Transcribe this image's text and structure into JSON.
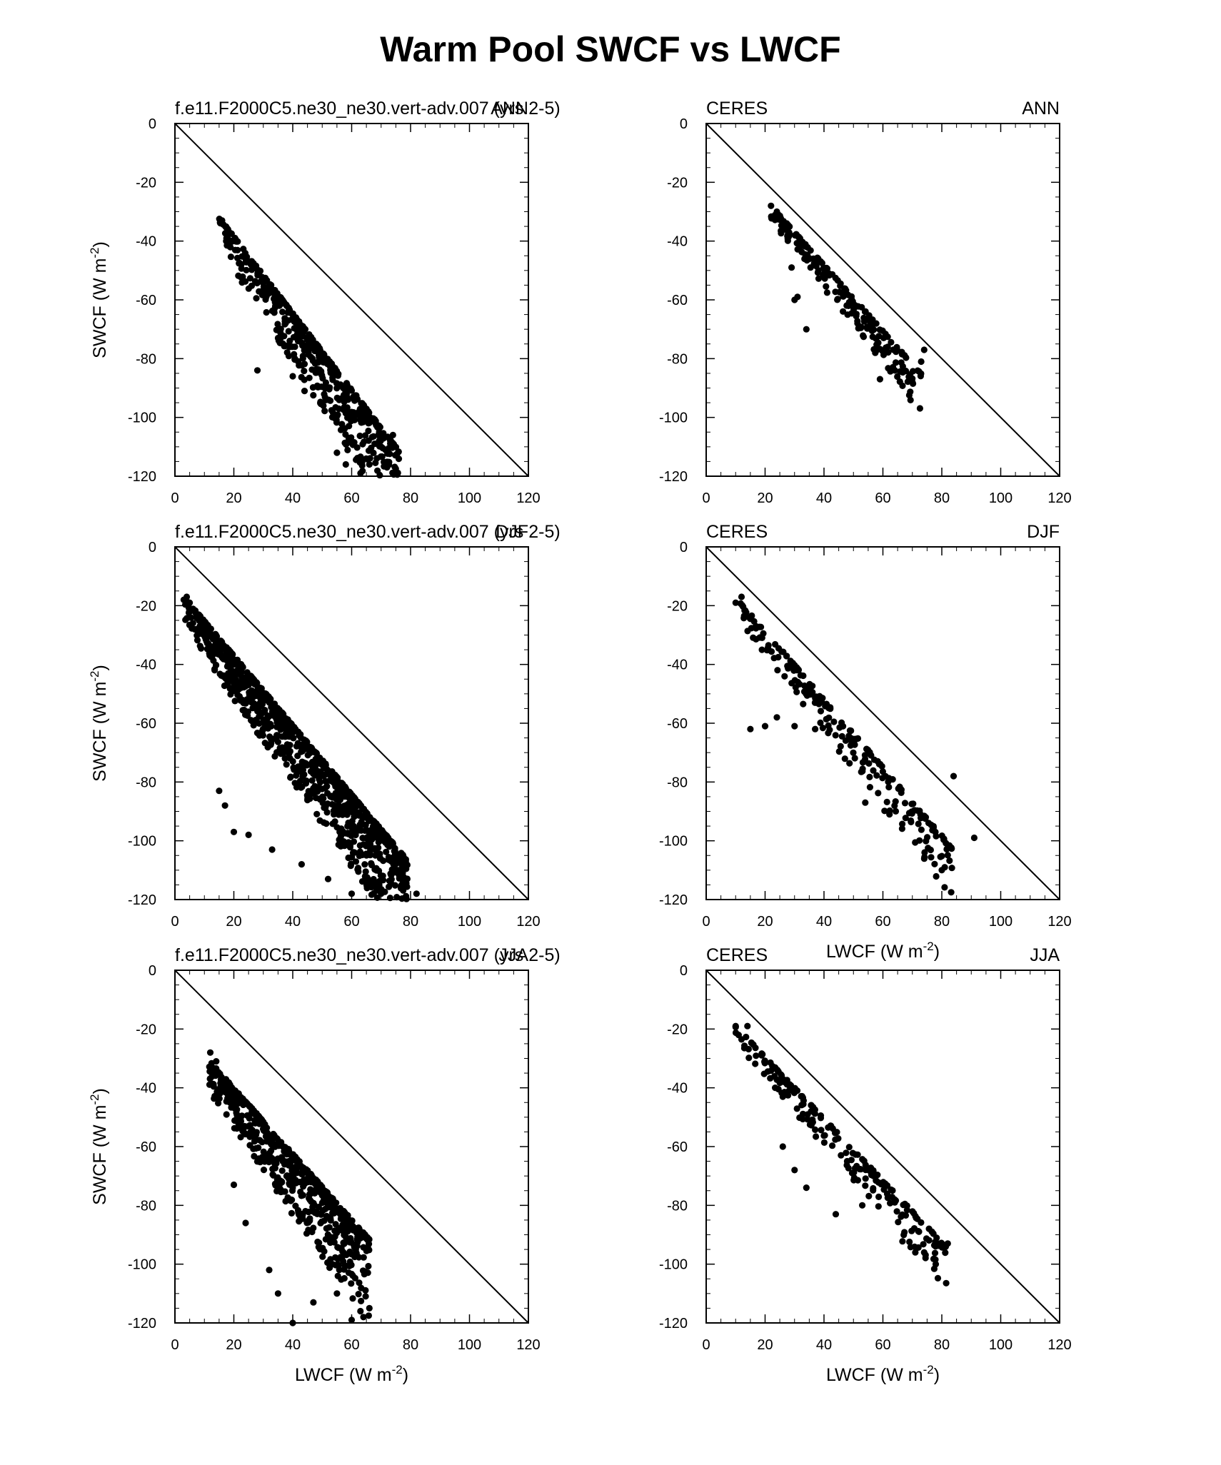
{
  "figure": {
    "title": "Warm Pool SWCF vs LWCF"
  },
  "chart_data": [
    {
      "type": "scatter",
      "left_title": "f.e11.F2000C5.ne30_ne30.vert-adv.007 (yrs 2-5)",
      "right_title": "ANN",
      "xlabel": "",
      "ylabel": "SWCF (W m-2)",
      "ylabel_main": "SWCF (W m",
      "ylabel_sup": "-2",
      "ylabel_end": ")",
      "xlim": [
        0,
        120
      ],
      "ylim": [
        -120,
        0
      ],
      "x_ticks": [
        "0",
        "20",
        "40",
        "60",
        "80",
        "100",
        "120"
      ],
      "y_ticks": [
        "0",
        "-20",
        "-40",
        "-60",
        "-80",
        "-100",
        "-120"
      ],
      "reference_line": "1:1 (SWCF = -LWCF)",
      "scatter_params": {
        "n": 520,
        "x0": 15,
        "x1": 76,
        "y0": -32,
        "slope": -1.3,
        "spread": 28,
        "seed": 11
      },
      "points": [
        [
          16,
          -33
        ],
        [
          18,
          -36
        ],
        [
          20,
          -40
        ],
        [
          28,
          -84
        ],
        [
          35,
          -73
        ],
        [
          40,
          -86
        ],
        [
          44,
          -91
        ],
        [
          55,
          -112
        ],
        [
          58,
          -116
        ],
        [
          63,
          -119
        ],
        [
          66,
          -116
        ],
        [
          70,
          -110
        ],
        [
          72,
          -117
        ],
        [
          74,
          -106
        ]
      ]
    },
    {
      "type": "scatter",
      "left_title": "CERES",
      "right_title": "ANN",
      "xlabel": "",
      "ylabel": "",
      "xlim": [
        0,
        120
      ],
      "ylim": [
        -120,
        0
      ],
      "x_ticks": [
        "0",
        "20",
        "40",
        "60",
        "80",
        "100",
        "120"
      ],
      "y_ticks": [
        "0",
        "-20",
        "-40",
        "-60",
        "-80",
        "-100",
        "-120"
      ],
      "reference_line": "1:1 (SWCF = -LWCF)",
      "scatter_params": {
        "n": 200,
        "x0": 22,
        "x1": 73,
        "y0": -28,
        "slope": -1.12,
        "spread": 14,
        "seed": 23
      },
      "points": [
        [
          22,
          -28
        ],
        [
          24,
          -30
        ],
        [
          30,
          -60
        ],
        [
          31,
          -59
        ],
        [
          29,
          -49
        ],
        [
          34,
          -70
        ],
        [
          59,
          -87
        ],
        [
          70,
          -88
        ],
        [
          74,
          -77
        ],
        [
          73,
          -81
        ]
      ]
    },
    {
      "type": "scatter",
      "left_title": "f.e11.F2000C5.ne30_ne30.vert-adv.007 (yrs 2-5)",
      "right_title": "DJF",
      "xlabel": "",
      "ylabel": "SWCF (W m-2)",
      "ylabel_main": "SWCF (W m",
      "ylabel_sup": "-2",
      "ylabel_end": ")",
      "xlim": [
        0,
        120
      ],
      "ylim": [
        -120,
        0
      ],
      "x_ticks": [
        "0",
        "20",
        "40",
        "60",
        "80",
        "100",
        "120"
      ],
      "y_ticks": [
        "0",
        "-20",
        "-40",
        "-60",
        "-80",
        "-100",
        "-120"
      ],
      "reference_line": "1:1 (SWCF = -LWCF)",
      "scatter_params": {
        "n": 950,
        "x0": 3,
        "x1": 79,
        "y0": -17,
        "slope": -1.18,
        "spread": 30,
        "seed": 37
      },
      "points": [
        [
          3,
          -18
        ],
        [
          4,
          -17
        ],
        [
          5,
          -19
        ],
        [
          15,
          -83
        ],
        [
          17,
          -88
        ],
        [
          20,
          -97
        ],
        [
          25,
          -98
        ],
        [
          33,
          -103
        ],
        [
          43,
          -108
        ],
        [
          52,
          -113
        ],
        [
          60,
          -118
        ],
        [
          70,
          -118
        ],
        [
          77,
          -115
        ],
        [
          82,
          -118
        ]
      ]
    },
    {
      "type": "scatter",
      "left_title": "CERES",
      "right_title": "DJF",
      "xlabel": "LWCF (W m-2)",
      "xlabel_main": "LWCF (W m",
      "xlabel_sup": "-2",
      "xlabel_end": ")",
      "ylabel": "",
      "xlim": [
        0,
        120
      ],
      "ylim": [
        -120,
        0
      ],
      "x_ticks": [
        "0",
        "20",
        "40",
        "60",
        "80",
        "100",
        "120"
      ],
      "y_ticks": [
        "0",
        "-20",
        "-40",
        "-60",
        "-80",
        "-100",
        "-120"
      ],
      "reference_line": "1:1 (SWCF = -LWCF)",
      "scatter_params": {
        "n": 220,
        "x0": 10,
        "x1": 84,
        "y0": -17,
        "slope": -1.16,
        "spread": 18,
        "seed": 41
      },
      "points": [
        [
          10,
          -19
        ],
        [
          12,
          -17
        ],
        [
          15,
          -62
        ],
        [
          20,
          -61
        ],
        [
          24,
          -58
        ],
        [
          30,
          -61
        ],
        [
          37,
          -62
        ],
        [
          54,
          -87
        ],
        [
          80,
          -110
        ],
        [
          81,
          -109
        ],
        [
          84,
          -78
        ],
        [
          91,
          -99
        ]
      ]
    },
    {
      "type": "scatter",
      "left_title": "f.e11.F2000C5.ne30_ne30.vert-adv.007 (yrs 2-5)",
      "right_title": "JJA",
      "xlabel": "LWCF (W m-2)",
      "xlabel_main": "LWCF (W m",
      "xlabel_sup": "-2",
      "xlabel_end": ")",
      "ylabel": "SWCF (W m-2)",
      "ylabel_main": "SWCF (W m",
      "ylabel_sup": "-2",
      "ylabel_end": ")",
      "xlim": [
        0,
        120
      ],
      "ylim": [
        -120,
        0
      ],
      "x_ticks": [
        "0",
        "20",
        "40",
        "60",
        "80",
        "100",
        "120"
      ],
      "y_ticks": [
        "0",
        "-20",
        "-40",
        "-60",
        "-80",
        "-100",
        "-120"
      ],
      "reference_line": "1:1 (SWCF = -LWCF)",
      "scatter_params": {
        "n": 620,
        "x0": 11,
        "x1": 66,
        "y0": -30,
        "slope": -1.12,
        "spread": 30,
        "seed": 53
      },
      "points": [
        [
          12,
          -28
        ],
        [
          12,
          -33
        ],
        [
          14,
          -31
        ],
        [
          20,
          -73
        ],
        [
          24,
          -86
        ],
        [
          32,
          -102
        ],
        [
          35,
          -110
        ],
        [
          40,
          -120
        ],
        [
          47,
          -113
        ],
        [
          55,
          -110
        ],
        [
          60,
          -119
        ],
        [
          64,
          -118
        ],
        [
          66,
          -115
        ]
      ]
    },
    {
      "type": "scatter",
      "left_title": "CERES",
      "right_title": "JJA",
      "xlabel": "LWCF (W m-2)",
      "xlabel_main": "LWCF (W m",
      "xlabel_sup": "-2",
      "xlabel_end": ")",
      "ylabel": "",
      "xlim": [
        0,
        120
      ],
      "ylim": [
        -120,
        0
      ],
      "x_ticks": [
        "0",
        "20",
        "40",
        "60",
        "80",
        "100",
        "120"
      ],
      "y_ticks": [
        "0",
        "-20",
        "-40",
        "-60",
        "-80",
        "-100",
        "-120"
      ],
      "reference_line": "1:1 (SWCF = -LWCF)",
      "scatter_params": {
        "n": 210,
        "x0": 10,
        "x1": 82,
        "y0": -19,
        "slope": -1.05,
        "spread": 16,
        "seed": 67
      },
      "points": [
        [
          10,
          -19
        ],
        [
          11,
          -22
        ],
        [
          14,
          -19
        ],
        [
          26,
          -60
        ],
        [
          30,
          -68
        ],
        [
          34,
          -74
        ],
        [
          44,
          -83
        ],
        [
          53,
          -80
        ],
        [
          71,
          -96
        ],
        [
          74,
          -96
        ],
        [
          82,
          -93
        ]
      ]
    }
  ]
}
